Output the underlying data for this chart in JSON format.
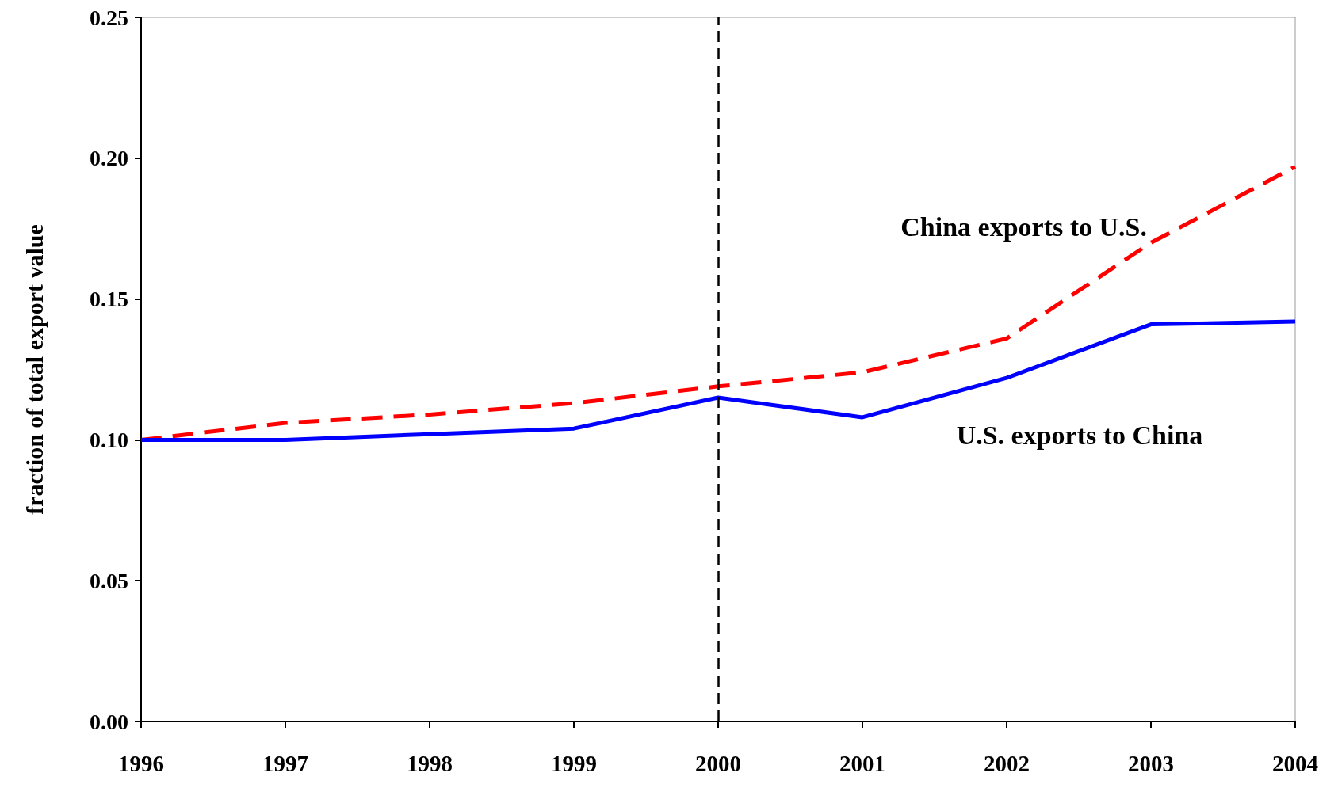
{
  "chart_data": {
    "type": "line",
    "ylabel": "fraction of total export value",
    "x": [
      1996,
      1997,
      1998,
      1999,
      2000,
      2001,
      2002,
      2003,
      2004
    ],
    "series": [
      {
        "name": "China exports to U.S.",
        "color": "#ff0000",
        "line_style": "dashed",
        "values": [
          0.1,
          0.106,
          0.109,
          0.113,
          0.119,
          0.124,
          0.136,
          0.17,
          0.197
        ]
      },
      {
        "name": "U.S. exports to China",
        "color": "#0000ff",
        "line_style": "solid",
        "values": [
          0.1,
          0.1,
          0.102,
          0.104,
          0.115,
          0.108,
          0.122,
          0.141,
          0.142
        ]
      }
    ],
    "xlim": [
      1996,
      2004
    ],
    "xticks": [
      1996,
      1997,
      1998,
      1999,
      2000,
      2001,
      2002,
      2003,
      2004
    ],
    "ylim": [
      0,
      0.25
    ],
    "yticks": [
      {
        "value": 0,
        "label": "0.00"
      },
      {
        "value": 0.05,
        "label": "0.05"
      },
      {
        "value": 0.1,
        "label": "0.10"
      },
      {
        "value": 0.15,
        "label": "0.15"
      },
      {
        "value": 0.2,
        "label": "0.20"
      },
      {
        "value": 0.25,
        "label": "0.25"
      }
    ],
    "ref_lines": [
      {
        "axis": "x",
        "value": 2000,
        "color": "#000000",
        "line_style": "dashed"
      }
    ],
    "marker": "none",
    "grid": false,
    "legend": false
  }
}
